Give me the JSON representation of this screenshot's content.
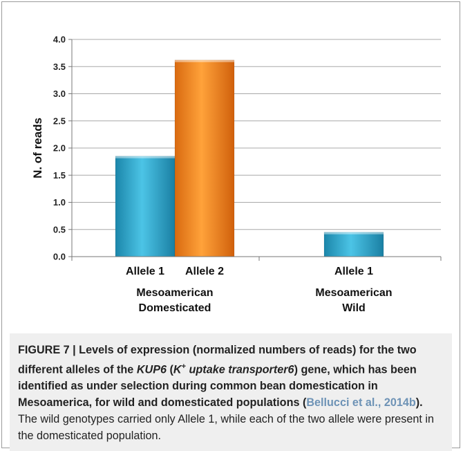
{
  "chart_data": {
    "type": "bar",
    "ylabel": "N. of reads",
    "ylim": [
      0,
      4.0
    ],
    "yticks": [
      "0.0",
      "0.5",
      "1.0",
      "1.5",
      "2.0",
      "2.5",
      "3.0",
      "3.5",
      "4.0"
    ],
    "groups": [
      {
        "name_line1": "Mesoamerican",
        "name_line2": "Domesticated",
        "bars": [
          {
            "label": "Allele 1",
            "value": 1.85,
            "color": "#2ea8cf"
          },
          {
            "label": "Allele 2",
            "value": 3.62,
            "color": "#f08a24"
          }
        ]
      },
      {
        "name_line1": "Mesoamerican",
        "name_line2": "Wild",
        "bars": [
          {
            "label": "Allele 1",
            "value": 0.45,
            "color": "#2ea8cf"
          }
        ]
      }
    ],
    "grid": true
  },
  "caption": {
    "lead": "FIGURE 7 | Levels of expression (normalized numbers of reads) for the two different alleles of the ",
    "gene": "KUP6",
    "paren_open": " (",
    "kplus": "K",
    "sup": "+",
    "transporter": " uptake transporter6",
    "paren_close": ")",
    "mid": " gene, which has been identified as under selection during common bean domestication in Mesoamerica, for wild and domesticated populations (",
    "citation": "Bellucci et al., 2014b",
    "close": ").",
    "rest": " The wild genotypes carried only Allele 1, while each of the two allele were present in the domesticated population."
  }
}
